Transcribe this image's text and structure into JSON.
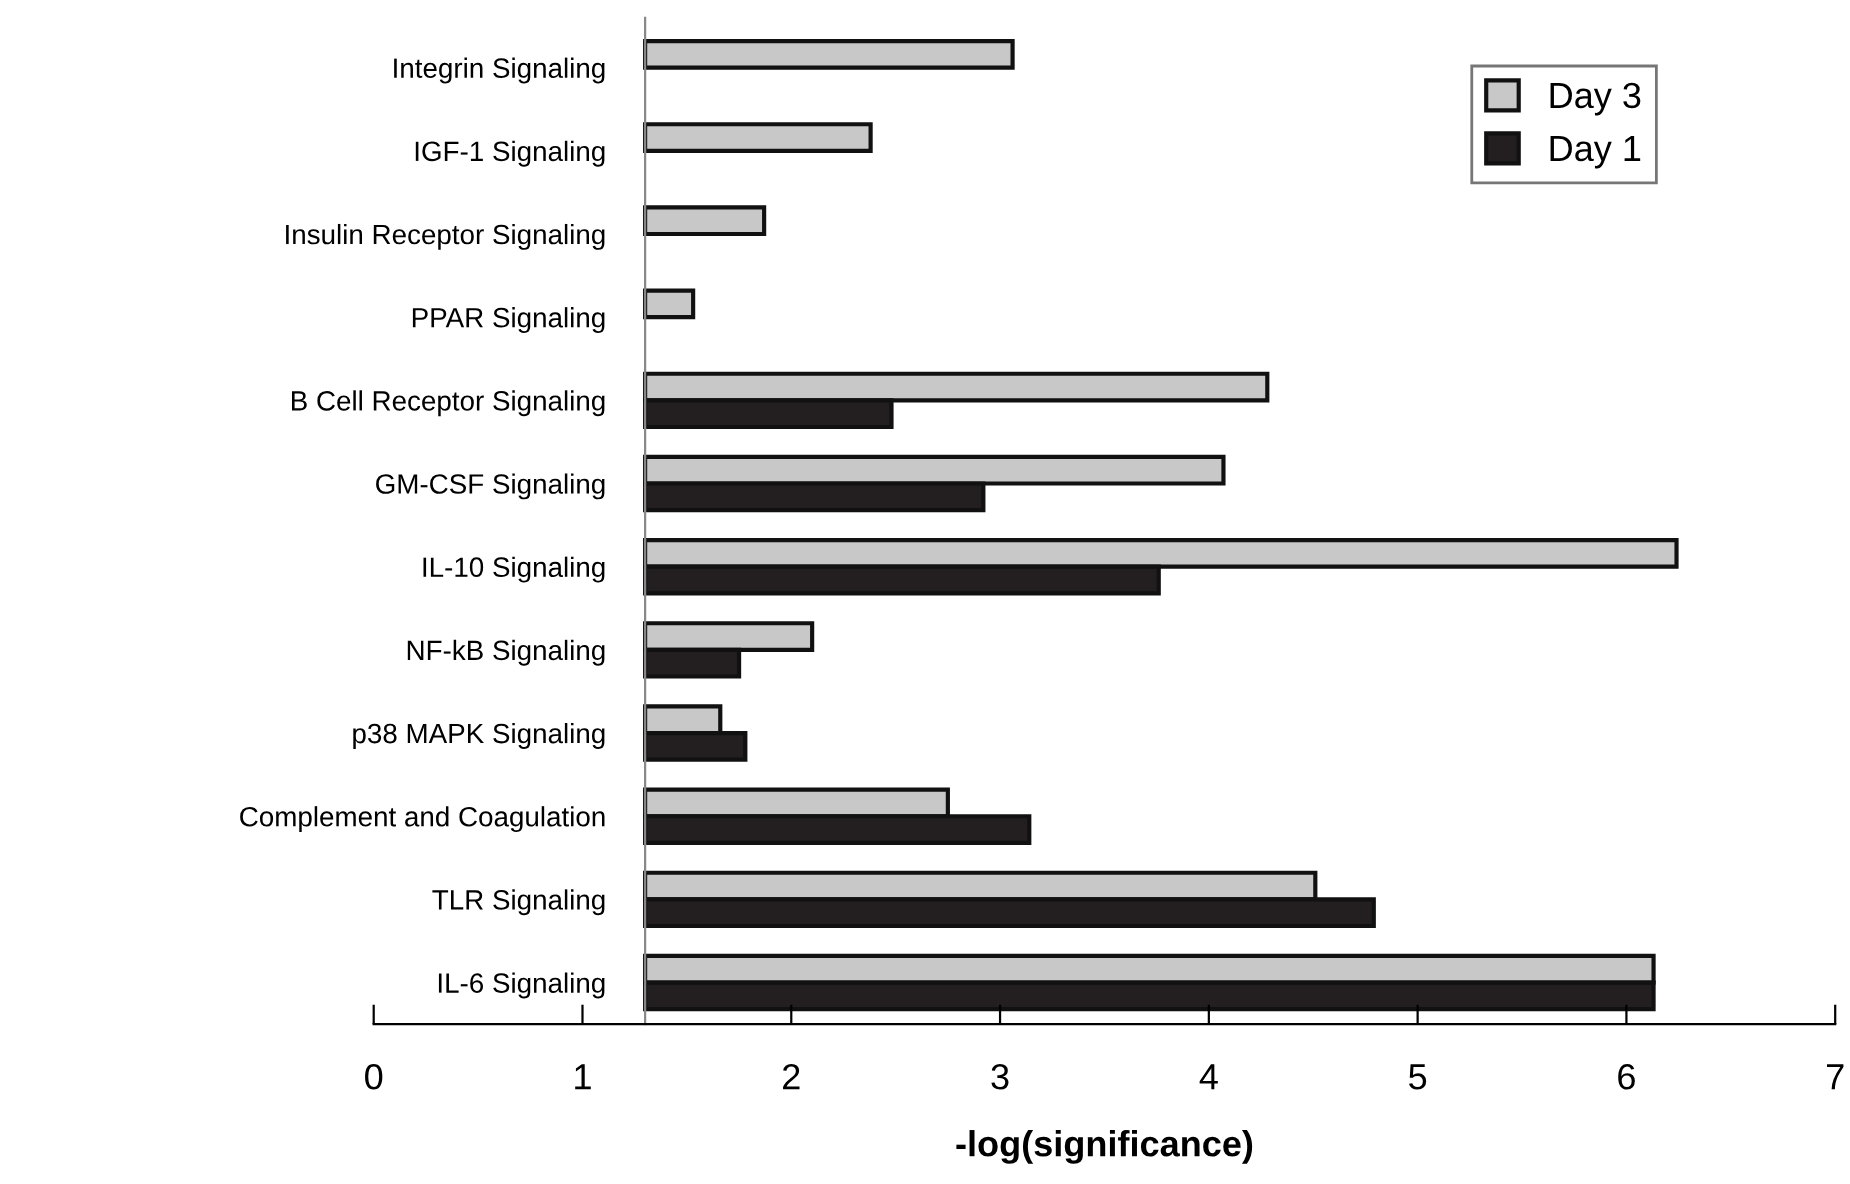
{
  "chart_data": {
    "type": "bar",
    "orientation": "horizontal",
    "xlabel": "-log(significance)",
    "categories": [
      "Integrin Signaling",
      "IGF-1 Signaling",
      "Insulin Receptor Signaling",
      "PPAR Signaling",
      "B Cell Receptor Signaling",
      "GM-CSF Signaling",
      "IL-10 Signaling",
      "NF-kB Signaling",
      "p38 MAPK Signaling",
      "Complement and Coagulation",
      "TLR Signaling",
      "IL-6 Signaling"
    ],
    "series": [
      {
        "name": "Day 3",
        "color": "#c8c8c8",
        "base": [
          1.3,
          1.3,
          1.3,
          1.3,
          1.3,
          1.3,
          1.3,
          1.3,
          1.3,
          1.3,
          1.3,
          1.3
        ],
        "values": [
          1.76,
          1.08,
          0.57,
          0.23,
          2.98,
          2.77,
          4.94,
          0.8,
          0.36,
          1.45,
          3.21,
          4.83
        ]
      },
      {
        "name": "Day 1",
        "color": "#231f20",
        "base": [
          null,
          null,
          null,
          null,
          1.3,
          1.3,
          1.3,
          1.3,
          1.3,
          1.3,
          1.3,
          1.3
        ],
        "values": [
          null,
          null,
          null,
          null,
          1.18,
          1.62,
          2.46,
          0.45,
          0.48,
          1.84,
          3.49,
          4.83
        ]
      }
    ],
    "xlim": [
      0,
      7
    ],
    "xticks": [
      0,
      1,
      2,
      3,
      4,
      5,
      6,
      7
    ],
    "grid": false,
    "legend": "top right"
  }
}
